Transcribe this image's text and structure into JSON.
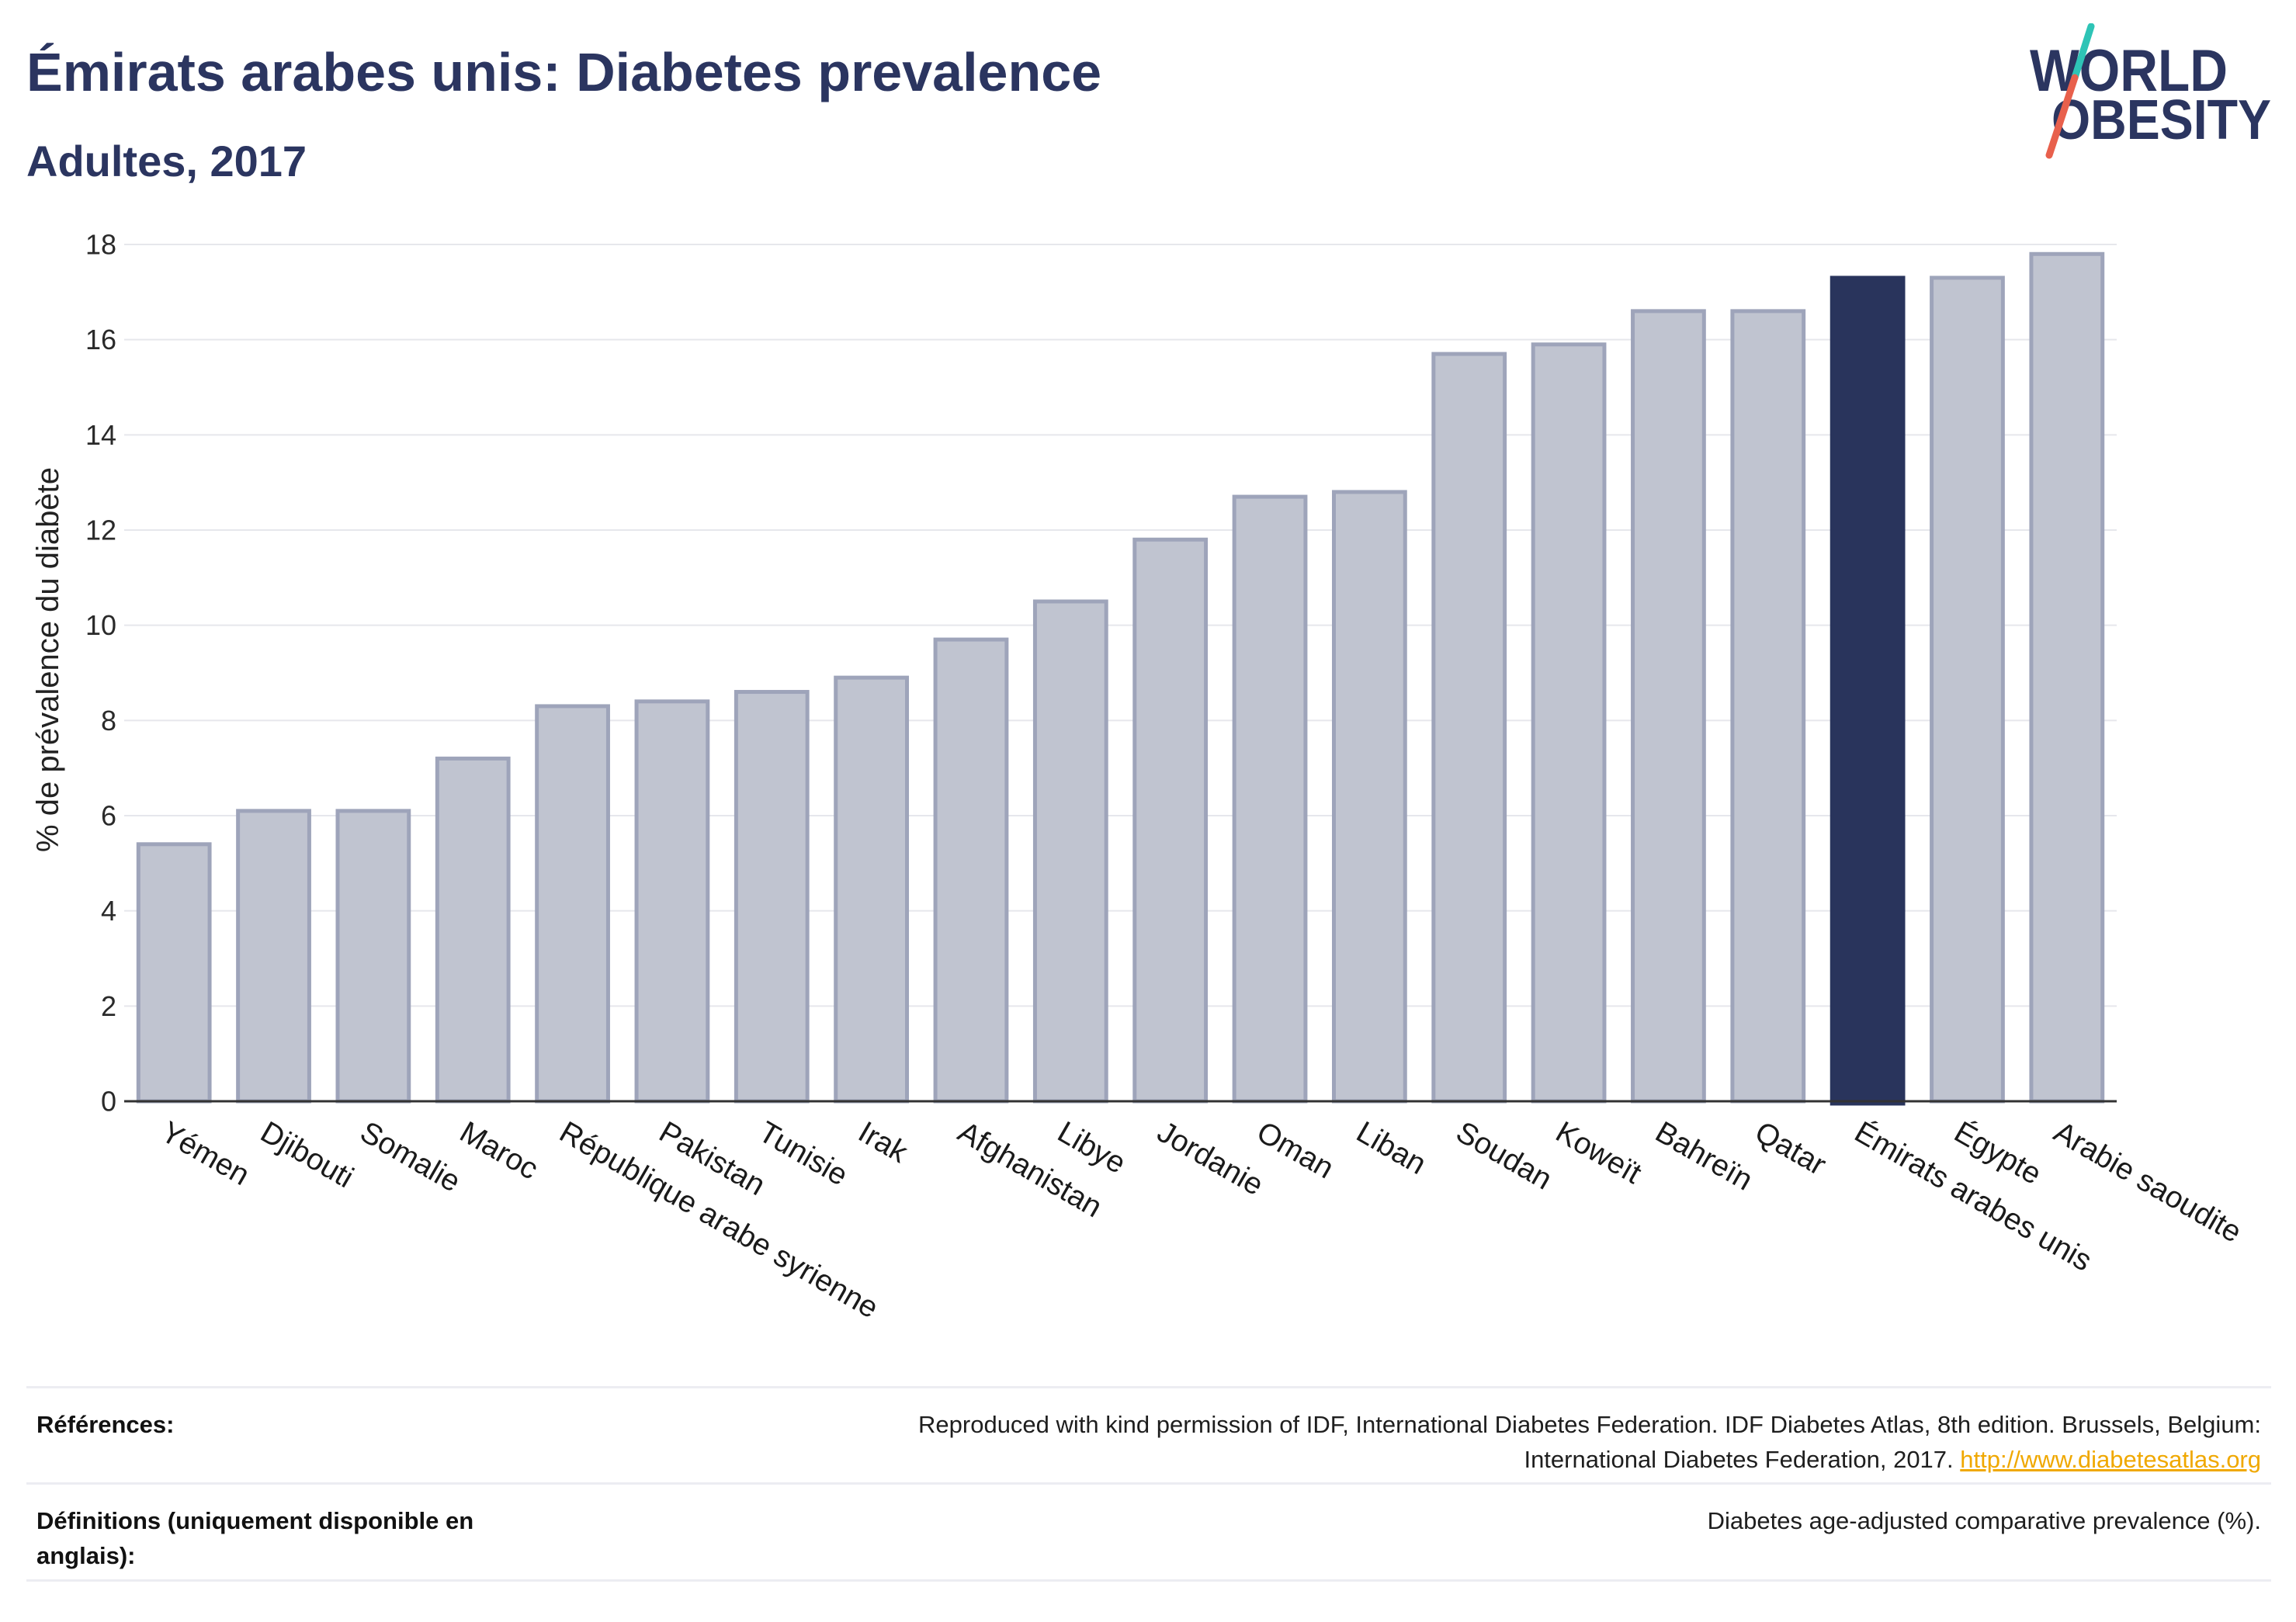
{
  "chart_data": {
    "type": "bar",
    "title": "Émirats arabes unis: Diabetes prevalence",
    "subtitle": "Adultes, 2017",
    "xlabel": "",
    "ylabel": "% de prévalence du diabète",
    "ylim": [
      0,
      18
    ],
    "yticks": [
      0,
      2,
      4,
      6,
      8,
      10,
      12,
      14,
      16,
      18
    ],
    "grid": true,
    "categories": [
      "Yémen",
      "Djibouti",
      "Somalie",
      "Maroc",
      "République arabe syrienne",
      "Pakistan",
      "Tunisie",
      "Irak",
      "Afghanistan",
      "Libye",
      "Jordanie",
      "Oman",
      "Liban",
      "Soudan",
      "Koweït",
      "Bahreïn",
      "Qatar",
      "Émirats arabes unis",
      "Égypte",
      "Arabie saoudite"
    ],
    "values": [
      5.4,
      6.1,
      6.1,
      7.2,
      8.3,
      8.4,
      8.6,
      8.9,
      9.7,
      10.5,
      11.8,
      12.7,
      12.8,
      15.7,
      15.9,
      16.6,
      16.6,
      17.3,
      17.3,
      17.8
    ],
    "highlight_index": 17
  },
  "logo": {
    "line1": "WORLD",
    "line2": "OBESITY"
  },
  "footer": {
    "references_label": "Références:",
    "references_line1": "Reproduced with kind permission of IDF, International Diabetes Federation. IDF Diabetes Atlas, 8th edition. Brussels, Belgium:",
    "references_line2": "International Diabetes Federation, 2017.",
    "references_link": "http://www.diabetesatlas.org",
    "definitions_label": "Définitions (uniquement disponible en anglais):",
    "definitions_text": "Diabetes age-adjusted comparative prevalence (%)."
  },
  "colors": {
    "title": "#2b3560",
    "bar": "#c0c4d0",
    "bar_border": "#9ea4ba",
    "highlight": "#29345c",
    "grid": "#e6e7ec",
    "axis": "#333333",
    "link": "#f0a800",
    "logo_teal": "#2ec4b6",
    "logo_red": "#e8604c"
  }
}
